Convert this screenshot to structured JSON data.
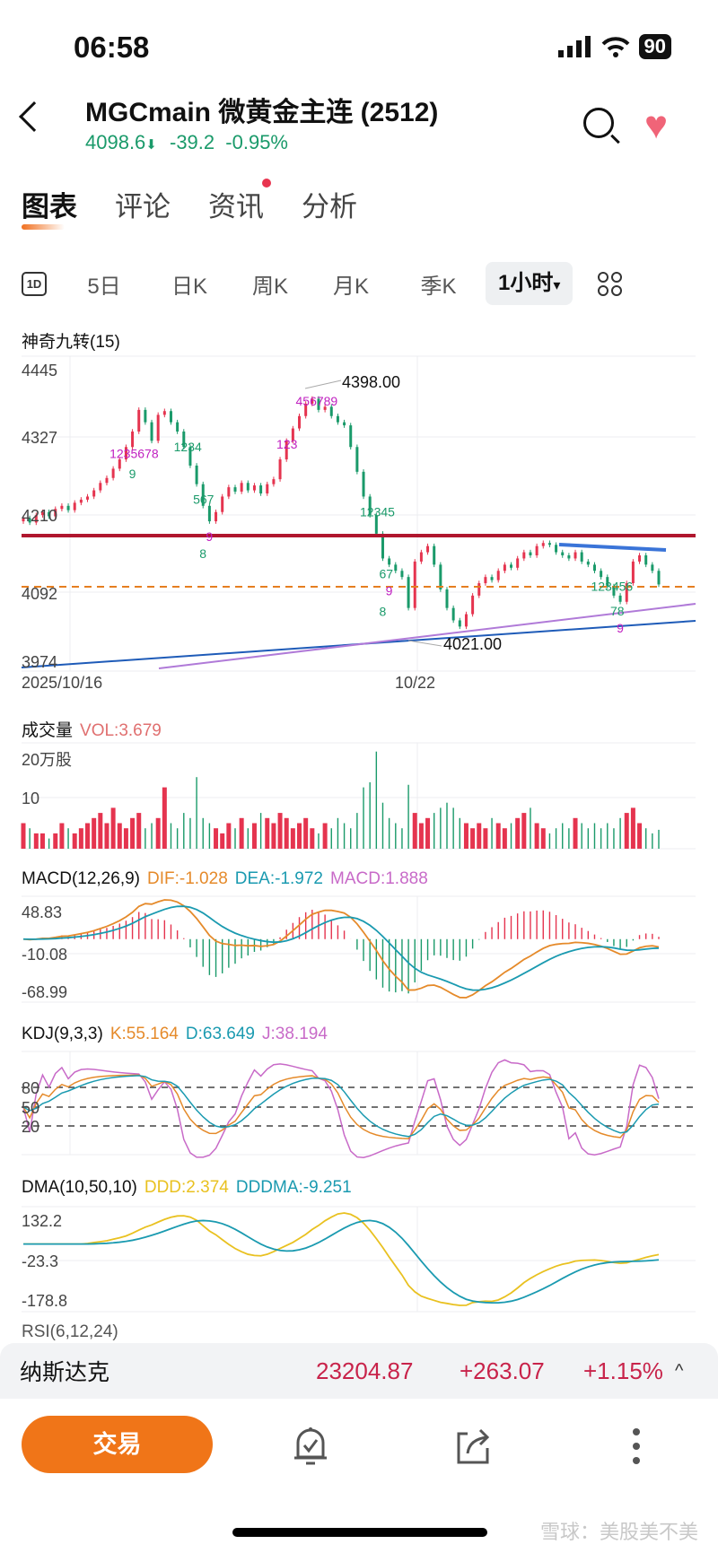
{
  "status_bar": {
    "time": "06:58",
    "battery": "90"
  },
  "header": {
    "title": "MGCmain  微黄金主连 (2512)",
    "price": "4098.6",
    "arrow": "⬇",
    "change": "-39.2",
    "change_pct": "-0.95%"
  },
  "tabs": [
    {
      "label": "图表",
      "active": true
    },
    {
      "label": "评论"
    },
    {
      "label": "资讯",
      "dot": true
    },
    {
      "label": "分析"
    }
  ],
  "periods": {
    "icon_1d": "1D",
    "items": [
      "5日",
      "日K",
      "周K",
      "月K",
      "季K"
    ],
    "selected": "1小时",
    "caret": "▾"
  },
  "colors": {
    "up": "#e5344f",
    "down": "#1a9a6a",
    "dif": "#e58a2a",
    "dea": "#1a9ab0",
    "macd": "#c86ac8",
    "ddd": "#e9c120",
    "dddma": "#1a9ab0"
  },
  "main_chart": {
    "title": "神奇九转(15)",
    "y_ticks": [
      "4445",
      "4327",
      "4210",
      "4092",
      "3974"
    ],
    "x_ticks": [
      "2025/10/16",
      "10/22"
    ],
    "annotations": {
      "high": "4398.00",
      "low": "4021.00"
    },
    "td_labels": [
      {
        "i": 14,
        "t": "1235678",
        "c": "#c020c0"
      },
      {
        "i": 17,
        "t": "9",
        "c": "#1a9a6a"
      },
      {
        "i": 24,
        "t": "1234",
        "c": "#1a9a6a"
      },
      {
        "i": 27,
        "t": "567",
        "c": "#1a9a6a"
      },
      {
        "i": 29,
        "t": "9",
        "c": "#c020c0"
      },
      {
        "i": 28,
        "t": "8",
        "c": "#1a9a6a"
      },
      {
        "i": 40,
        "t": "123",
        "c": "#c020c0"
      },
      {
        "i": 43,
        "t": "456789",
        "c": "#c020c0"
      },
      {
        "i": 53,
        "t": "12345",
        "c": "#1a9a6a"
      },
      {
        "i": 56,
        "t": "67",
        "c": "#1a9a6a"
      },
      {
        "i": 57,
        "t": "9",
        "c": "#c020c0"
      },
      {
        "i": 56,
        "t": "8",
        "c": "#1a9a6a"
      },
      {
        "i": 89,
        "t": "123456",
        "c": "#1a9a6a"
      },
      {
        "i": 92,
        "t": "78",
        "c": "#1a9a6a"
      },
      {
        "i": 93,
        "t": "9",
        "c": "#c020c0"
      }
    ]
  },
  "volume": {
    "title": "成交量",
    "value": "VOL:3.679",
    "y_ticks": [
      "20万股",
      "10"
    ]
  },
  "macd": {
    "title": "MACD(12,26,9)",
    "dif": "DIF:-1.028",
    "dea": "DEA:-1.972",
    "macd": "MACD:1.888",
    "y_ticks": [
      "48.83",
      "-10.08",
      "-68.99"
    ],
    "params": [
      12,
      26,
      9
    ]
  },
  "kdj": {
    "title": "KDJ(9,3,3)",
    "k": "K:55.164",
    "d": "D:63.649",
    "j": "J:38.194",
    "y_ticks": [
      "80",
      "50",
      "20"
    ]
  },
  "dma": {
    "title": "DMA(10,50,10)",
    "ddd": "DDD:2.374",
    "dddma": "DDDMA:-9.251",
    "y_ticks": [
      "132.2",
      "-23.3",
      "-178.8"
    ]
  },
  "rsi_partial": {
    "title": "RSI(6,12,24)"
  },
  "chart_data": {
    "type": "candlestick",
    "interval": "1小时",
    "ylim": [
      3974,
      4445
    ],
    "closes": [
      4205,
      4198,
      4210,
      4215,
      4208,
      4220,
      4225,
      4218,
      4230,
      4235,
      4240,
      4250,
      4262,
      4270,
      4285,
      4300,
      4320,
      4345,
      4380,
      4360,
      4330,
      4372,
      4378,
      4360,
      4345,
      4320,
      4290,
      4260,
      4225,
      4200,
      4215,
      4240,
      4255,
      4248,
      4262,
      4250,
      4258,
      4245,
      4260,
      4268,
      4300,
      4330,
      4350,
      4370,
      4390,
      4398,
      4380,
      4385,
      4370,
      4360,
      4355,
      4320,
      4280,
      4240,
      4210,
      4180,
      4140,
      4130,
      4120,
      4110,
      4060,
      4135,
      4150,
      4160,
      4130,
      4090,
      4060,
      4040,
      4030,
      4050,
      4080,
      4100,
      4110,
      4105,
      4120,
      4130,
      4125,
      4140,
      4150,
      4145,
      4160,
      4165,
      4162,
      4150,
      4145,
      4140,
      4150,
      4135,
      4130,
      4120,
      4110,
      4095,
      4080,
      4070,
      4100,
      4135,
      4145,
      4130,
      4120,
      4098
    ],
    "volumes": [
      5,
      4,
      3,
      3,
      2,
      3,
      5,
      4,
      3,
      4,
      5,
      6,
      7,
      5,
      8,
      5,
      4,
      6,
      7,
      4,
      5,
      6,
      12,
      5,
      4,
      7,
      6,
      14,
      6,
      5,
      4,
      3,
      5,
      4,
      6,
      4,
      5,
      7,
      6,
      5,
      7,
      6,
      4,
      5,
      6,
      4,
      3,
      5,
      4,
      6,
      5,
      4,
      7,
      12,
      13,
      19,
      9,
      6,
      5,
      4,
      12.5,
      7,
      5,
      6,
      7,
      8,
      9,
      8,
      6,
      5,
      4,
      5,
      4,
      6,
      5,
      4,
      5,
      6,
      7,
      8,
      5,
      4,
      3,
      4,
      5,
      4,
      6,
      5,
      4,
      5,
      4,
      5,
      4,
      6,
      7,
      8,
      5,
      4,
      3,
      3.7
    ],
    "last_price": 4098.6,
    "resistance": 4177
  },
  "ticker": {
    "name": "纳斯达克",
    "value": "23204.87",
    "change": "+263.07",
    "pct": "+1.15%",
    "caret": "^"
  },
  "bottom": {
    "trade": "交易"
  },
  "watermark": "雪球：美股美不美"
}
